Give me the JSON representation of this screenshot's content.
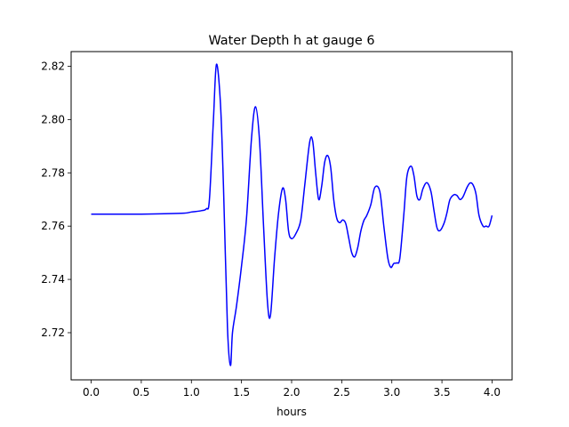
{
  "chart_data": {
    "type": "line",
    "title": "Water Depth h at gauge 6",
    "xlabel": "hours",
    "ylabel": "",
    "xlim": [
      -0.2,
      4.2
    ],
    "ylim": [
      2.7023,
      2.8255
    ],
    "grid": false,
    "legend": "none",
    "xticks": [
      0.0,
      0.5,
      1.0,
      1.5,
      2.0,
      2.5,
      3.0,
      3.5,
      4.0
    ],
    "xtick_labels": [
      "0.0",
      "0.5",
      "1.0",
      "1.5",
      "2.0",
      "2.5",
      "3.0",
      "3.5",
      "4.0"
    ],
    "yticks": [
      2.72,
      2.74,
      2.76,
      2.78,
      2.8,
      2.82
    ],
    "ytick_labels": [
      "2.72",
      "2.74",
      "2.76",
      "2.78",
      "2.80",
      "2.82"
    ],
    "series": [
      {
        "color": "#0000ff",
        "x": [
          0.0,
          0.5,
          0.9,
          1.0,
          1.1,
          1.15,
          1.18,
          1.22,
          1.25,
          1.29,
          1.32,
          1.36,
          1.39,
          1.41,
          1.45,
          1.5,
          1.55,
          1.6,
          1.64,
          1.68,
          1.72,
          1.76,
          1.79,
          1.83,
          1.87,
          1.91,
          1.94,
          1.97,
          2.0,
          2.04,
          2.09,
          2.13,
          2.18,
          2.21,
          2.24,
          2.27,
          2.3,
          2.33,
          2.36,
          2.39,
          2.42,
          2.45,
          2.48,
          2.51,
          2.54,
          2.57,
          2.6,
          2.63,
          2.66,
          2.69,
          2.72,
          2.75,
          2.79,
          2.83,
          2.88,
          2.92,
          2.96,
          2.99,
          3.02,
          3.05,
          3.08,
          3.12,
          3.15,
          3.19,
          3.22,
          3.25,
          3.28,
          3.31,
          3.35,
          3.39,
          3.42,
          3.45,
          3.48,
          3.52,
          3.55,
          3.58,
          3.62,
          3.65,
          3.68,
          3.71,
          3.75,
          3.78,
          3.81,
          3.84,
          3.87,
          3.91,
          3.94,
          3.97,
          4.0
        ],
        "y": [
          2.7645,
          2.7645,
          2.7648,
          2.7653,
          2.7658,
          2.7665,
          2.77,
          2.8,
          2.8207,
          2.806,
          2.775,
          2.722,
          2.7077,
          2.72,
          2.73,
          2.745,
          2.763,
          2.793,
          2.8048,
          2.792,
          2.76,
          2.731,
          2.7268,
          2.748,
          2.765,
          2.7742,
          2.77,
          2.758,
          2.7553,
          2.757,
          2.762,
          2.775,
          2.7915,
          2.792,
          2.78,
          2.77,
          2.775,
          2.784,
          2.7865,
          2.782,
          2.77,
          2.763,
          2.7613,
          2.7623,
          2.761,
          2.7555,
          2.75,
          2.7485,
          2.752,
          2.758,
          2.762,
          2.764,
          2.768,
          2.7745,
          2.773,
          2.76,
          2.748,
          2.7445,
          2.746,
          2.7462,
          2.748,
          2.7645,
          2.7785,
          2.7825,
          2.779,
          2.7713,
          2.77,
          2.774,
          2.7763,
          2.773,
          2.766,
          2.7595,
          2.7583,
          2.761,
          2.765,
          2.77,
          2.7718,
          2.7715,
          2.77,
          2.771,
          2.7745,
          2.7762,
          2.7755,
          2.772,
          2.764,
          2.76,
          2.76,
          2.76,
          2.764
        ]
      }
    ]
  }
}
